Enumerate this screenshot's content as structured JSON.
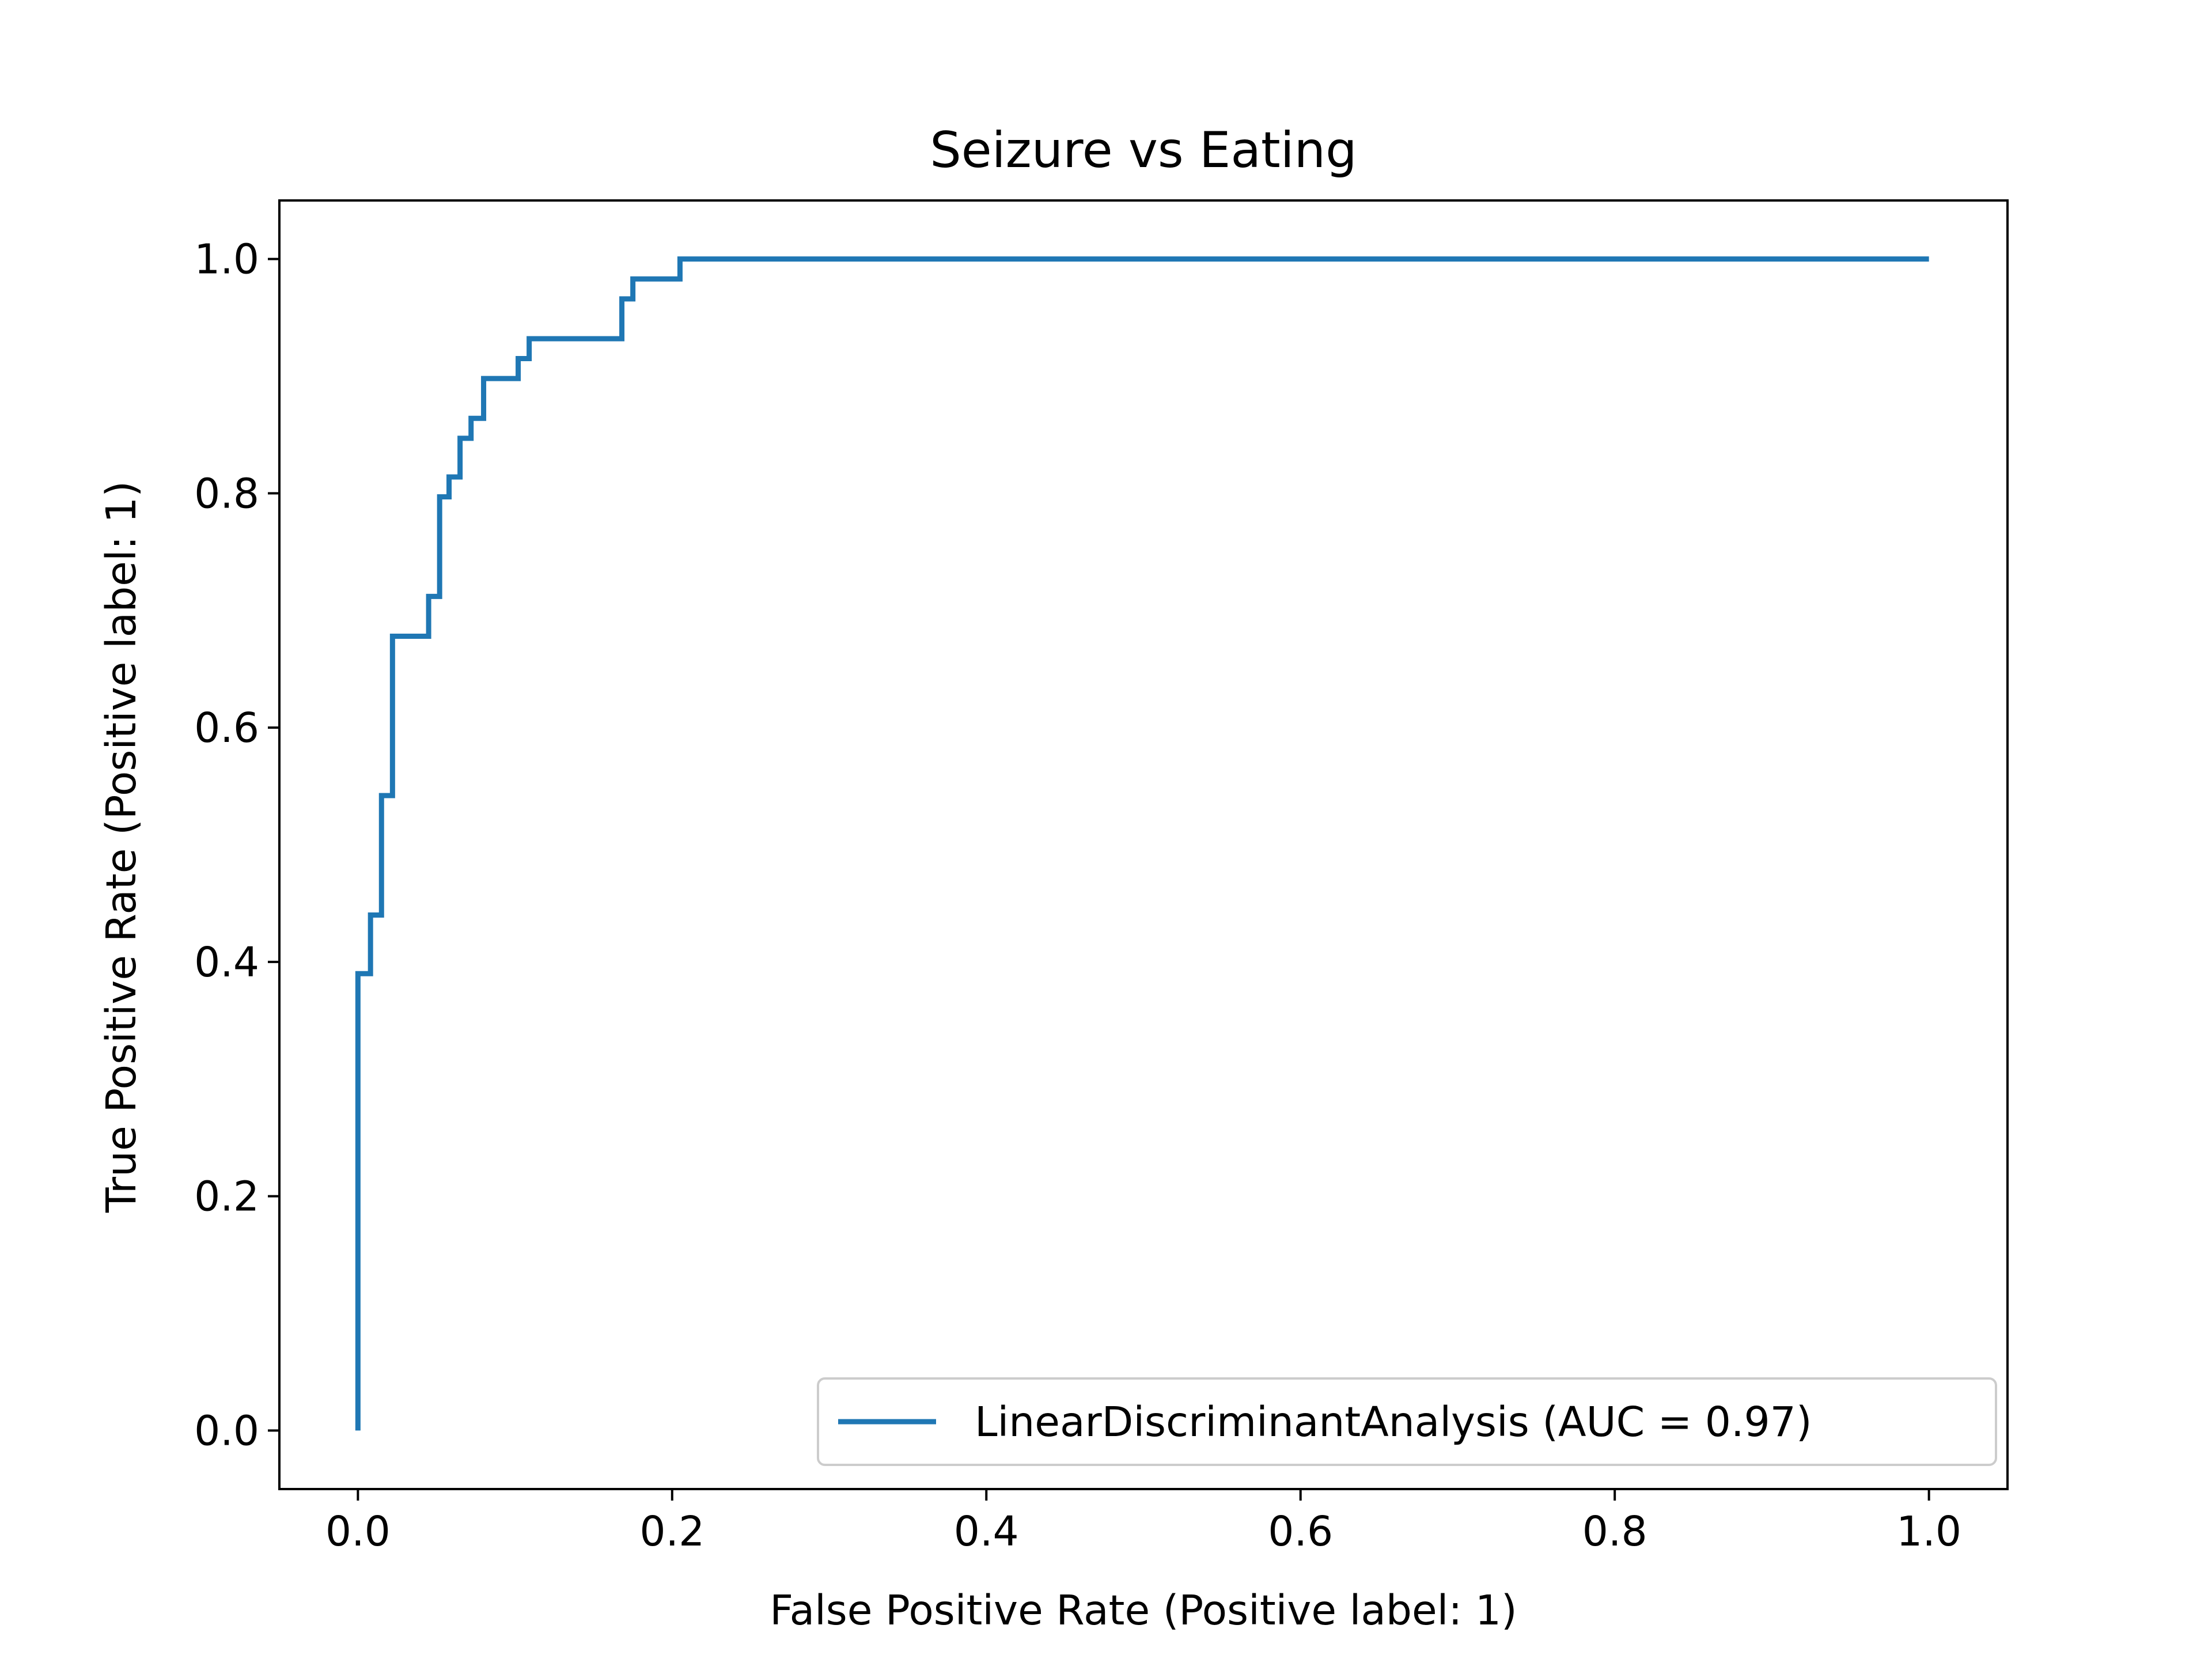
{
  "chart_data": {
    "type": "line",
    "title": "Seizure vs Eating",
    "xlabel": "False Positive Rate (Positive label: 1)",
    "ylabel": "True Positive Rate (Positive label: 1)",
    "xlim": [
      -0.05,
      1.05
    ],
    "ylim": [
      -0.05,
      1.05
    ],
    "xticks": [
      0.0,
      0.2,
      0.4,
      0.6,
      0.8,
      1.0
    ],
    "xtick_labels": [
      "0.0",
      "0.2",
      "0.4",
      "0.6",
      "0.8",
      "1.0"
    ],
    "yticks": [
      0.0,
      0.2,
      0.4,
      0.6,
      0.8,
      1.0
    ],
    "ytick_labels": [
      "0.0",
      "0.2",
      "0.4",
      "0.6",
      "0.8",
      "1.0"
    ],
    "grid": false,
    "legend_position": "lower-right",
    "series": [
      {
        "name": "LinearDiscriminantAnalysis (AUC = 0.97)",
        "color": "#1f77b4",
        "step": true,
        "x": [
          0.0,
          0.0,
          0.008,
          0.008,
          0.015,
          0.015,
          0.022,
          0.022,
          0.045,
          0.045,
          0.052,
          0.052,
          0.058,
          0.058,
          0.065,
          0.065,
          0.072,
          0.072,
          0.08,
          0.08,
          0.102,
          0.102,
          0.109,
          0.109,
          0.168,
          0.168,
          0.175,
          0.175,
          0.205,
          0.205,
          1.0
        ],
        "y": [
          0.0,
          0.39,
          0.39,
          0.44,
          0.44,
          0.542,
          0.542,
          0.678,
          0.678,
          0.712,
          0.712,
          0.797,
          0.797,
          0.814,
          0.814,
          0.847,
          0.847,
          0.864,
          0.864,
          0.898,
          0.898,
          0.915,
          0.915,
          0.932,
          0.932,
          0.966,
          0.966,
          0.983,
          0.983,
          1.0,
          1.0
        ]
      }
    ]
  }
}
